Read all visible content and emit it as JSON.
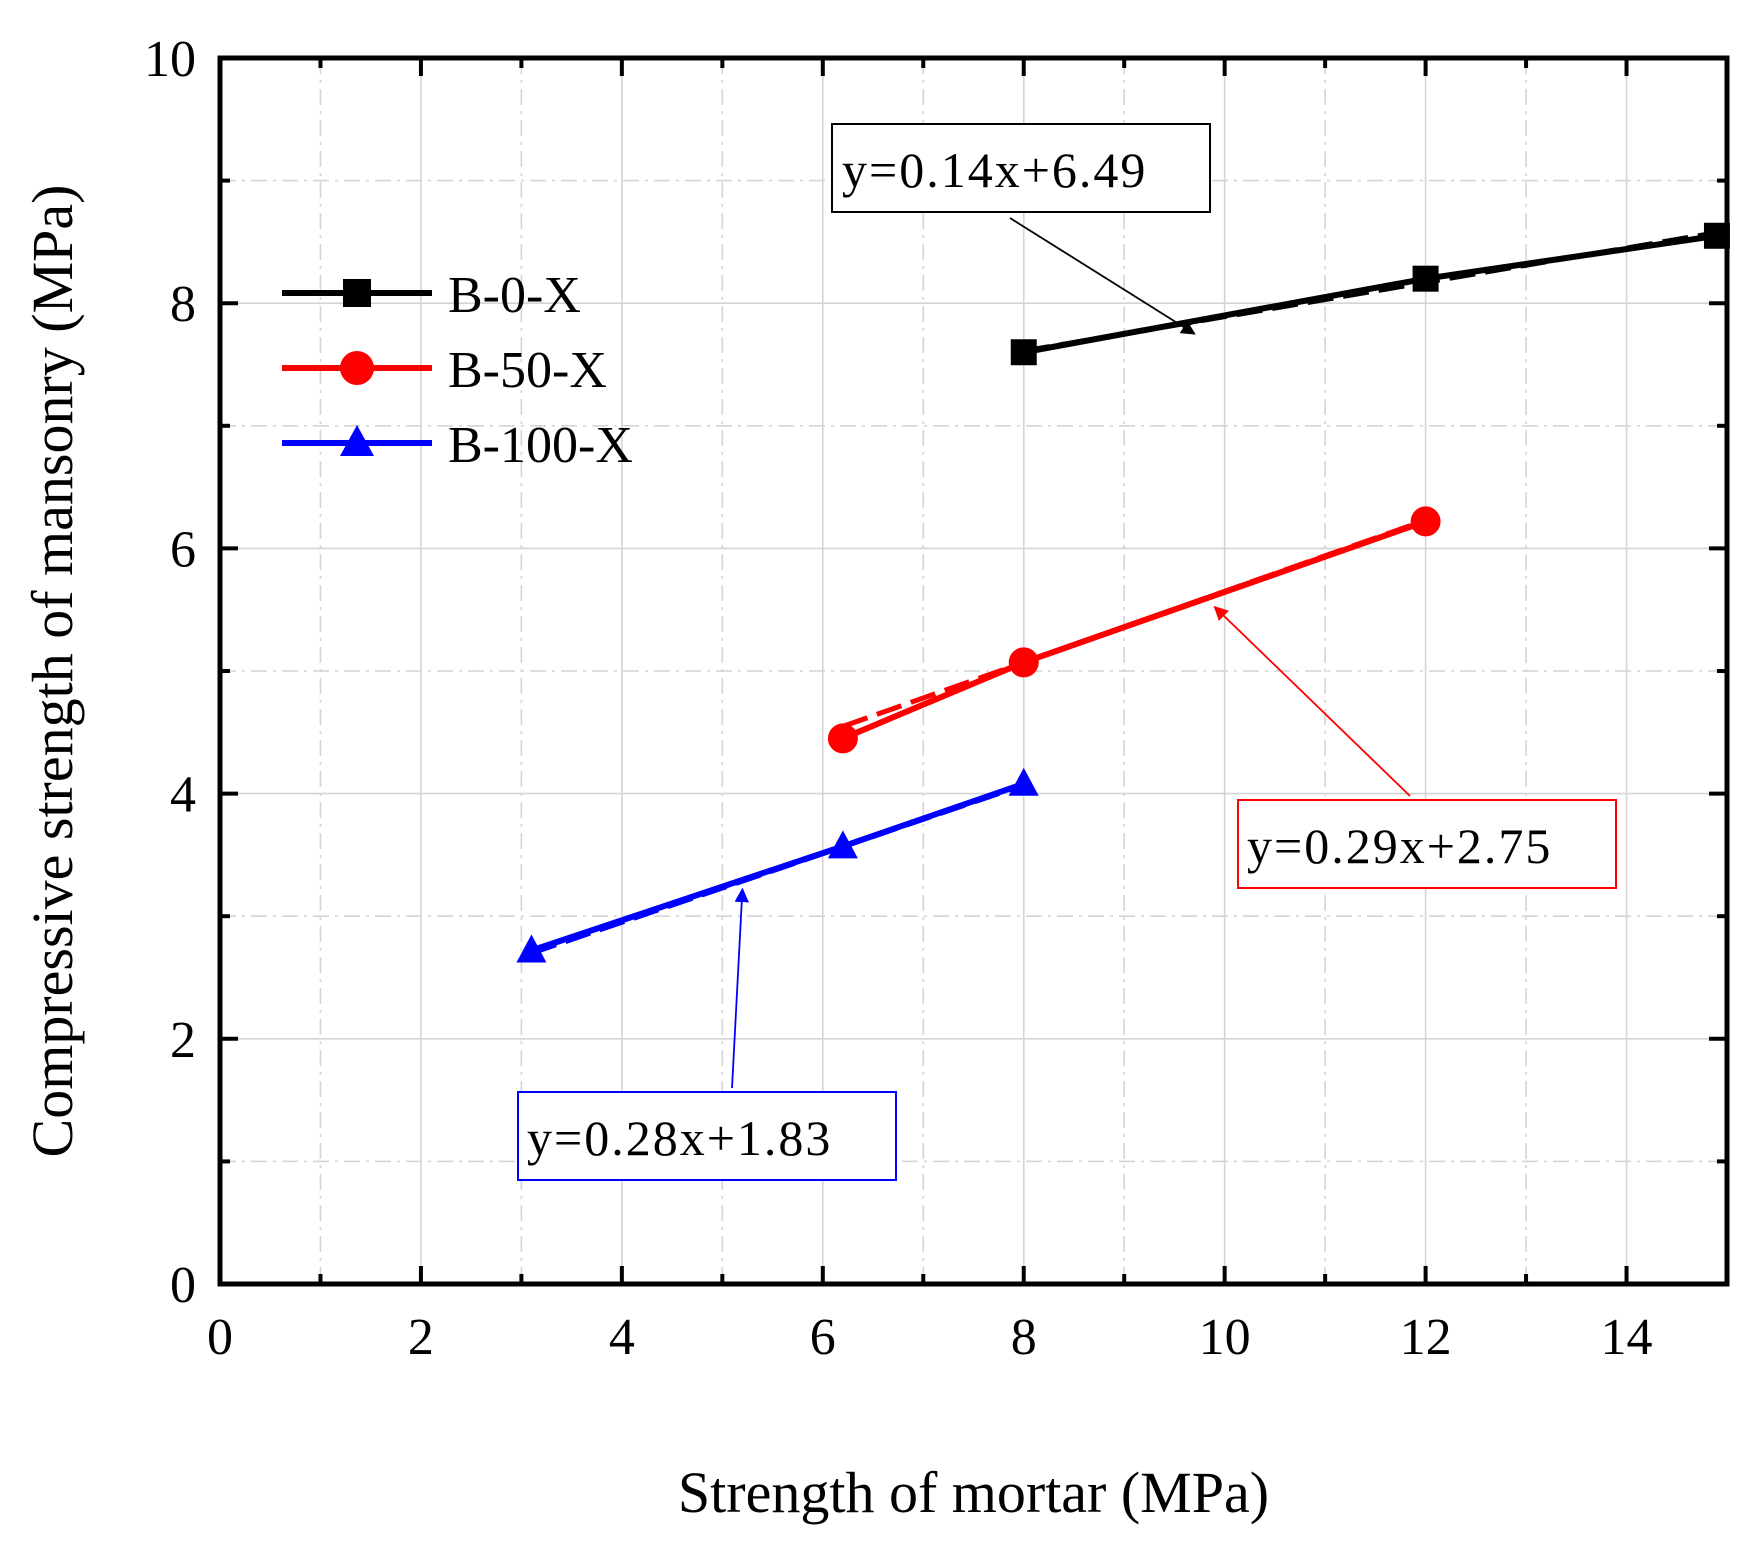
{
  "chart_data": {
    "type": "line",
    "xlabel": "Strength of mortar (MPa)",
    "ylabel": "Compressive strength of mansonry (MPa)",
    "xlim": [
      0,
      15
    ],
    "ylim": [
      0,
      10
    ],
    "x_ticks": [
      0,
      2,
      4,
      6,
      8,
      10,
      12,
      14
    ],
    "y_ticks": [
      0,
      2,
      4,
      6,
      8,
      10
    ],
    "x_tick_labels": [
      "0",
      "2",
      "4",
      "6",
      "8",
      "10",
      "12",
      "14"
    ],
    "y_tick_labels": [
      "0",
      "2",
      "4",
      "6",
      "8",
      "10"
    ],
    "grid": true,
    "legend_position": "top-left",
    "series": [
      {
        "name": "B-0-X",
        "color": "#000000",
        "marker": "square",
        "x": [
          8.0,
          12.0,
          14.9
        ],
        "y": [
          7.6,
          8.2,
          8.55
        ],
        "fit": {
          "slope": 0.14,
          "intercept": 6.49,
          "label": "y=0.14x+6.49",
          "box_color": "#000000",
          "arrow_to_x": 9.7
        }
      },
      {
        "name": "B-50-X",
        "color": "#ff0000",
        "marker": "circle",
        "x": [
          6.2,
          8.0,
          12.0
        ],
        "y": [
          4.45,
          5.07,
          6.22
        ],
        "fit": {
          "slope": 0.29,
          "intercept": 2.75,
          "label": "y=0.29x+2.75",
          "box_color": "#ff0000",
          "arrow_to_x": 9.9
        }
      },
      {
        "name": "B-100-X",
        "color": "#0000ff",
        "marker": "triangle",
        "x": [
          3.1,
          6.2,
          8.0
        ],
        "y": [
          2.72,
          3.57,
          4.08
        ],
        "fit": {
          "slope": 0.28,
          "intercept": 1.83,
          "label": "y=0.28x+1.83",
          "box_color": "#0000ff",
          "arrow_to_x": 5.2
        }
      }
    ]
  }
}
